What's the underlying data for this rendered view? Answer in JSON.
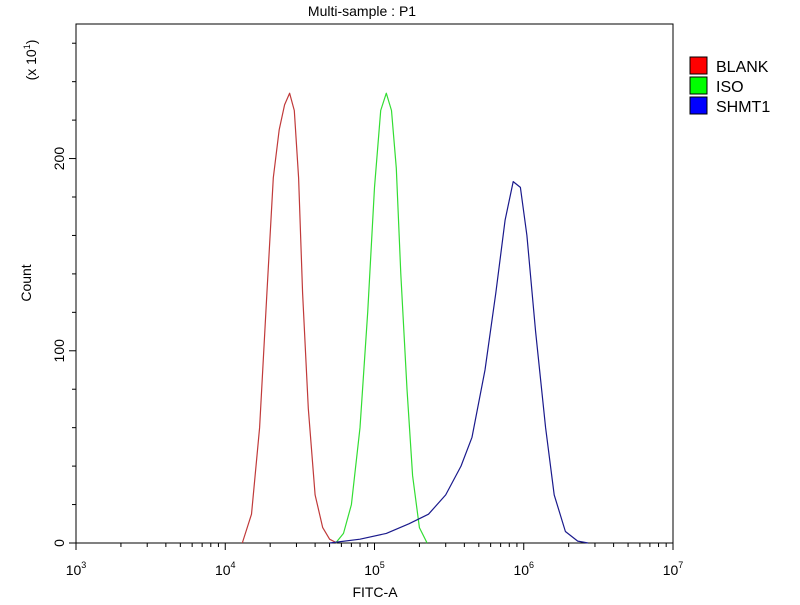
{
  "chart_data": {
    "type": "line",
    "title": "Multi-sample : P1",
    "xlabel": "FITC-A",
    "ylabel": "Count",
    "y_multiplier": "(x 10",
    "y_multiplier_exp": "1",
    "x_scale": "log",
    "xlim": [
      1000,
      10000000
    ],
    "ylim": [
      0,
      270
    ],
    "grid": false,
    "legend_position": "top-right",
    "x_ticks": [
      {
        "value": 1000,
        "base": "10",
        "exp": "3"
      },
      {
        "value": 10000,
        "base": "10",
        "exp": "4"
      },
      {
        "value": 100000,
        "base": "10",
        "exp": "5"
      },
      {
        "value": 1000000,
        "base": "10",
        "exp": "6"
      },
      {
        "value": 10000000,
        "base": "10",
        "exp": "7"
      }
    ],
    "y_ticks": [
      {
        "value": 0,
        "label": "0"
      },
      {
        "value": 100,
        "label": "100"
      },
      {
        "value": 200,
        "label": "200"
      }
    ],
    "series": [
      {
        "name": "BLANK",
        "color": "#ff0000",
        "line_color": "#c03a3a",
        "x": [
          13000,
          15000,
          17000,
          19000,
          21000,
          23000,
          25000,
          27000,
          29000,
          31000,
          33000,
          36000,
          40000,
          45000,
          50000,
          56000
        ],
        "y": [
          0,
          15,
          60,
          130,
          190,
          215,
          228,
          234,
          225,
          190,
          130,
          70,
          25,
          8,
          2,
          0
        ]
      },
      {
        "name": "ISO",
        "color": "#00ff00",
        "line_color": "#33dd33",
        "x": [
          55000,
          62000,
          70000,
          80000,
          90000,
          100000,
          110000,
          120000,
          130000,
          140000,
          150000,
          165000,
          180000,
          200000,
          225000
        ],
        "y": [
          0,
          5,
          20,
          60,
          120,
          185,
          225,
          234,
          225,
          195,
          140,
          80,
          35,
          8,
          0
        ]
      },
      {
        "name": "SHMT1",
        "color": "#0000ff",
        "line_color": "#1a1a8c",
        "x": [
          50000,
          80000,
          120000,
          170000,
          230000,
          300000,
          380000,
          450000,
          550000,
          650000,
          750000,
          850000,
          950000,
          1050000,
          1200000,
          1400000,
          1600000,
          1900000,
          2300000,
          2700000
        ],
        "y": [
          0,
          2,
          5,
          10,
          15,
          25,
          40,
          55,
          90,
          130,
          168,
          188,
          185,
          160,
          110,
          60,
          25,
          6,
          1,
          0
        ]
      }
    ]
  }
}
